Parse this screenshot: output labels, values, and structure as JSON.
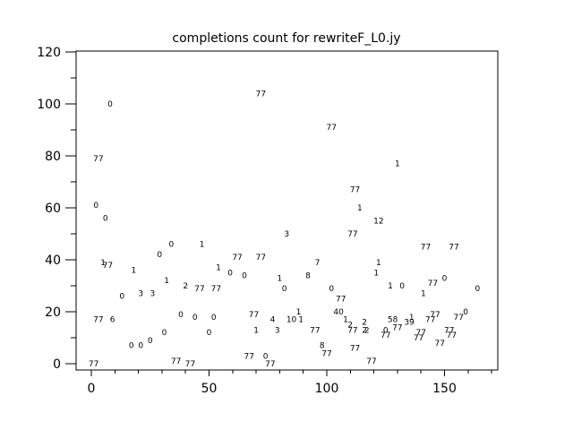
{
  "chart_data": {
    "type": "scatter",
    "marker_style": "text-label",
    "title": "completions count for rewriteF_L0.jy",
    "xlabel": "",
    "ylabel": "",
    "xlim": [
      -6.5,
      172.6
    ],
    "ylim": [
      -2.3,
      120
    ],
    "x_major_ticks": [
      0,
      50,
      100,
      150
    ],
    "x_minor_tick_step": 10,
    "x_minor_tick_max": 170,
    "y_major_ticks": [
      0,
      20,
      40,
      60,
      80,
      100,
      120
    ],
    "y_minor_tick_step": 10,
    "grid": false,
    "legend_position": "none",
    "axis_color": "#000000",
    "background_color": "#ffffff",
    "points": [
      [
        1,
        0,
        "77"
      ],
      [
        3,
        17,
        "77"
      ],
      [
        9,
        17,
        "6"
      ],
      [
        13,
        26,
        "0"
      ],
      [
        5,
        39,
        "1"
      ],
      [
        7,
        38,
        "77"
      ],
      [
        6,
        56,
        "0"
      ],
      [
        2,
        61,
        "0"
      ],
      [
        3,
        79,
        "77"
      ],
      [
        8,
        100,
        "0"
      ],
      [
        17,
        7,
        "0"
      ],
      [
        21,
        7,
        "0"
      ],
      [
        25,
        9,
        "0"
      ],
      [
        21,
        27,
        "3"
      ],
      [
        26,
        27,
        "3"
      ],
      [
        18,
        36,
        "1"
      ],
      [
        31,
        12,
        "0"
      ],
      [
        32,
        32,
        "1"
      ],
      [
        29,
        42,
        "0"
      ],
      [
        34,
        46,
        "0"
      ],
      [
        36,
        1,
        "77"
      ],
      [
        42,
        0,
        "77"
      ],
      [
        38,
        19,
        "0"
      ],
      [
        44,
        18,
        "0"
      ],
      [
        40,
        30,
        "2"
      ],
      [
        46,
        29,
        "77"
      ],
      [
        47,
        46,
        "1"
      ],
      [
        50,
        12,
        "0"
      ],
      [
        52,
        18,
        "0"
      ],
      [
        53,
        29,
        "77"
      ],
      [
        54,
        37,
        "1"
      ],
      [
        59,
        35,
        "0"
      ],
      [
        62,
        41,
        "77"
      ],
      [
        65,
        34,
        "0"
      ],
      [
        67,
        3,
        "77"
      ],
      [
        69,
        19,
        "77"
      ],
      [
        70,
        13,
        "1"
      ],
      [
        72,
        41,
        "77"
      ],
      [
        72,
        104,
        "77"
      ],
      [
        74,
        3,
        "0"
      ],
      [
        76,
        0,
        "77"
      ],
      [
        77,
        17,
        "4"
      ],
      [
        79,
        13,
        "3"
      ],
      [
        80,
        33,
        "1"
      ],
      [
        82,
        29,
        "0"
      ],
      [
        83,
        50,
        "3"
      ],
      [
        85,
        17,
        "10"
      ],
      [
        88,
        20,
        "1"
      ],
      [
        89,
        17,
        "1"
      ],
      [
        92,
        34,
        "8"
      ],
      [
        95,
        13,
        "77"
      ],
      [
        96,
        39,
        "7"
      ],
      [
        98,
        7,
        "8"
      ],
      [
        100,
        4,
        "77"
      ],
      [
        102,
        29,
        "0"
      ],
      [
        102,
        91,
        "77"
      ],
      [
        105,
        20,
        "40"
      ],
      [
        106,
        25,
        "77"
      ],
      [
        108,
        17,
        "1"
      ],
      [
        110,
        15,
        "2"
      ],
      [
        111,
        13,
        "77"
      ],
      [
        111,
        50,
        "77"
      ],
      [
        112,
        6,
        "77"
      ],
      [
        112,
        67,
        "77"
      ],
      [
        114,
        60,
        "1"
      ],
      [
        116,
        16,
        "2"
      ],
      [
        116,
        13,
        "2"
      ],
      [
        117,
        13,
        "2"
      ],
      [
        119,
        1,
        "77"
      ],
      [
        121,
        35,
        "1"
      ],
      [
        122,
        39,
        "1"
      ],
      [
        122,
        55,
        "12"
      ],
      [
        125,
        13,
        "0"
      ],
      [
        125,
        11,
        "77"
      ],
      [
        127,
        30,
        "1"
      ],
      [
        128,
        17,
        "58"
      ],
      [
        130,
        14,
        "77"
      ],
      [
        130,
        77,
        "1"
      ],
      [
        132,
        30,
        "0"
      ],
      [
        135,
        16,
        "39"
      ],
      [
        136,
        18,
        "1"
      ],
      [
        139,
        10,
        "77"
      ],
      [
        140,
        12,
        "77"
      ],
      [
        141,
        27,
        "1"
      ],
      [
        142,
        45,
        "77"
      ],
      [
        144,
        17,
        "77"
      ],
      [
        145,
        31,
        "77"
      ],
      [
        146,
        19,
        "77"
      ],
      [
        148,
        8,
        "77"
      ],
      [
        150,
        33,
        "0"
      ],
      [
        152,
        13,
        "77"
      ],
      [
        153,
        11,
        "77"
      ],
      [
        154,
        45,
        "77"
      ],
      [
        156,
        18,
        "77"
      ],
      [
        159,
        20,
        "0"
      ],
      [
        164,
        29,
        "0"
      ]
    ]
  }
}
